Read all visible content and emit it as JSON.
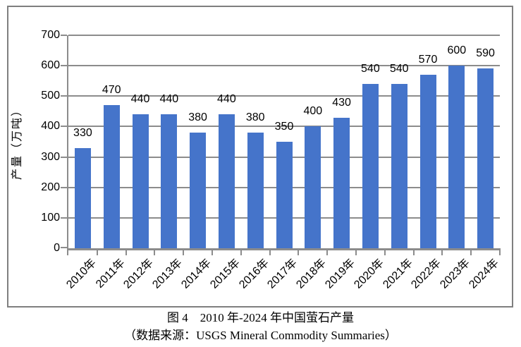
{
  "chart_data": {
    "type": "bar",
    "title": "图 4　2010 年-2024 年中国萤石产量",
    "source": "（数据来源：USGS Mineral Commodity Summaries）",
    "categories": [
      "2010年",
      "2011年",
      "2012年",
      "2013年",
      "2014年",
      "2015年",
      "2016年",
      "2017年",
      "2018年",
      "2019年",
      "2020年",
      "2021年",
      "2022年",
      "2023年",
      "2024年"
    ],
    "values": [
      330,
      470,
      440,
      440,
      380,
      440,
      380,
      350,
      400,
      430,
      540,
      540,
      570,
      600,
      590
    ],
    "data_labels": [
      "330",
      "470",
      "440",
      "440",
      "380",
      "440",
      "380",
      "350",
      "400",
      "430",
      "540",
      "540",
      "570",
      "600",
      "590"
    ],
    "xlabel": "",
    "ylabel": "产量（万吨）",
    "ylim": [
      0,
      700
    ],
    "yticks": [
      0,
      100,
      200,
      300,
      400,
      500,
      600,
      700
    ],
    "grid": true,
    "legend": false,
    "colors": {
      "bar": "#4574CA",
      "gridline": "#8C8C8C",
      "axis": "#8C8C8C",
      "frame": "#7F7F7F",
      "text": "#000000",
      "background": "#FFFFFF"
    }
  }
}
